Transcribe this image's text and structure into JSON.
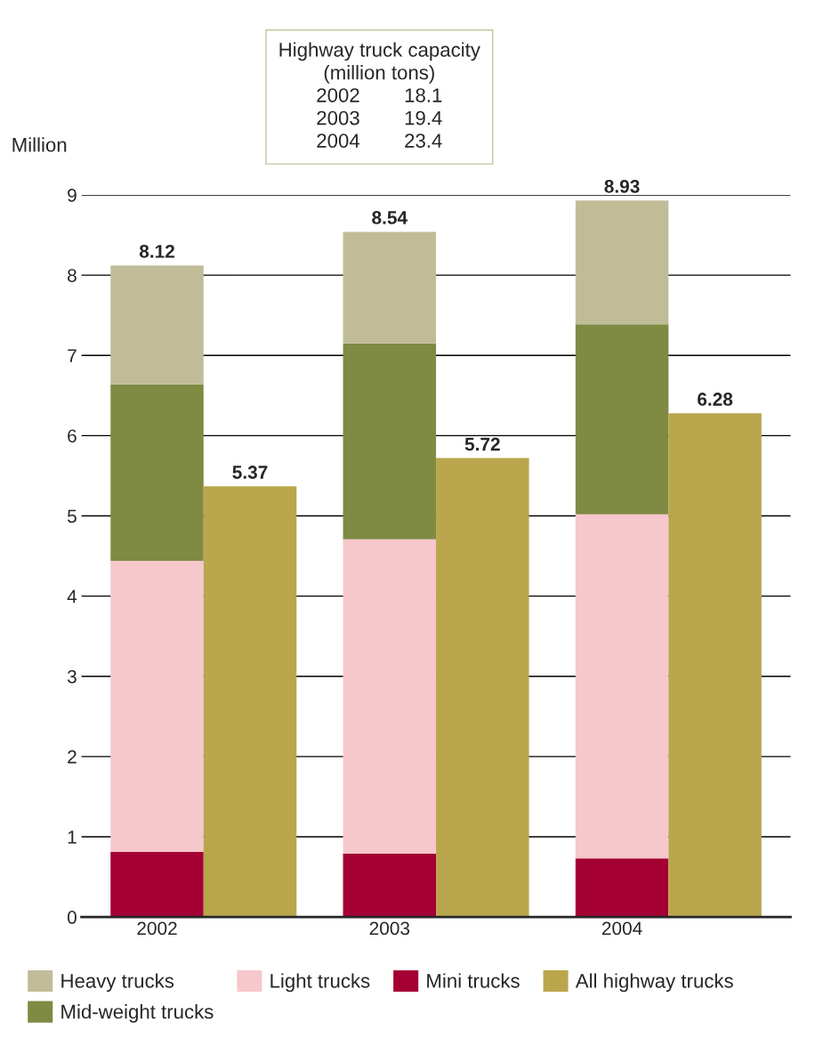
{
  "chart_data": {
    "type": "bar",
    "ylabel": "Million",
    "categories": [
      "2002",
      null,
      "2003",
      null,
      "2004",
      null
    ],
    "stacked": true,
    "series": [
      {
        "name": "Mini trucks",
        "color": "#a50034",
        "values": [
          0.81,
          null,
          0.79,
          null,
          0.73,
          null
        ]
      },
      {
        "name": "Light trucks",
        "color": "#f6c7cb",
        "values": [
          3.63,
          null,
          3.92,
          null,
          4.29,
          null
        ]
      },
      {
        "name": "Mid-weight trucks",
        "color": "#7f8a43",
        "values": [
          2.2,
          null,
          2.44,
          null,
          2.37,
          null
        ]
      },
      {
        "name": "Heavy trucks",
        "color": "#c1bc98",
        "values": [
          1.48,
          null,
          1.39,
          null,
          1.54,
          null
        ]
      },
      {
        "name": "All highway trucks",
        "color": "#b9a64d",
        "values": [
          null,
          5.37,
          null,
          5.72,
          null,
          6.28
        ],
        "value_labels": [
          null,
          "5.37",
          null,
          "5.72",
          null,
          "6.28"
        ]
      }
    ],
    "totals": [
      "8.12",
      null,
      "8.54",
      null,
      "8.93",
      null
    ],
    "ylim": [
      0,
      9
    ],
    "yticks": [
      0,
      1,
      2,
      3,
      4,
      5,
      6,
      7,
      8,
      9
    ],
    "grid": "y",
    "legend": "bottom",
    "annotations": [
      "Highway truck capacity\n(million tons)\n2002        18.1\n2003        19.4\n2004        23.4"
    ]
  }
}
